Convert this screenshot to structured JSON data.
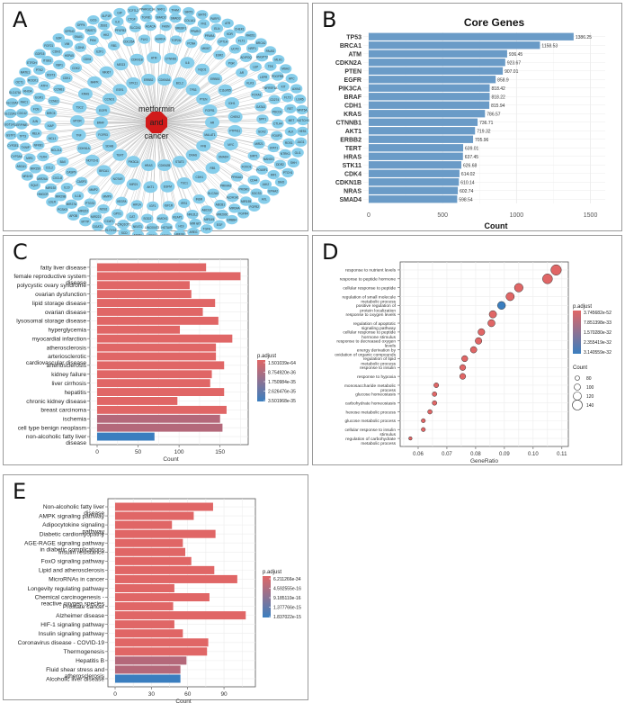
{
  "panels": {
    "A": {
      "letter": "A"
    },
    "B": {
      "letter": "B"
    },
    "C": {
      "letter": "C"
    },
    "D": {
      "letter": "D"
    },
    "E": {
      "letter": "E"
    }
  },
  "network": {
    "center_label_lines": [
      "metformin",
      "and",
      "cancer"
    ],
    "center_color": "#d11a1a",
    "node_color": "#87ceeb",
    "edge_color": "#b8b8b8",
    "inner_nodes": [
      "AR",
      "MALAT1",
      "FFB",
      "DNAS",
      "STAT3",
      "CDKN2B",
      "HRAS",
      "PIK3CA",
      "TERT",
      "SDHB",
      "FGFR3",
      "BRAF",
      "EGFR",
      "CCND1",
      "ESR1",
      "STK11",
      "ERBB2",
      "CDKN2A",
      "BCL2",
      "TP53",
      "PTEN",
      "FGFR1",
      "PTPN11",
      "MYC",
      "SMAD4",
      "RB1",
      "CDH1",
      "TSC1",
      "EGFM",
      "AKT1",
      "MIR21",
      "NOTAR",
      "BRCA1",
      "NOTCH1",
      "CDKN1A",
      "TNF",
      "MTOR",
      "TSC2",
      "KRAS",
      "MAPK",
      "MKI67",
      "MEG3",
      "CDKN1B",
      "ATM",
      "CTNNB1",
      "IL6",
      "NQO1",
      "ERBB3",
      "C11orf65",
      "IDH1",
      "CHEK2"
    ],
    "outer_nodes": [
      "MIR21",
      "SIRT1",
      "FOXO1",
      "PRKAA1",
      "PRKAA2",
      "SLC2A4",
      "INSR",
      "IRS1",
      "IGF1R",
      "IGF1",
      "HIF1A",
      "VEGFA",
      "MMP9",
      "MMP2",
      "CASP3",
      "CASP9",
      "BAX",
      "BCL2L1",
      "MCL1",
      "XIAP",
      "BIRC5",
      "CCNE1",
      "CCNB1",
      "CDK1",
      "CDK2",
      "CDK6",
      "E2F1",
      "RB1",
      "CDC25A",
      "PLK1",
      "AURKA",
      "TOP2A",
      "PCNA",
      "MKI67",
      "ESR2",
      "PGR",
      "AR",
      "KLK3",
      "FOXA1",
      "GATA3",
      "SPP1",
      "SOX2",
      "NANOG",
      "POU5F1",
      "CD44",
      "PROM1",
      "ALDH1A1",
      "ABCB1",
      "ABCG2",
      "NFE2L2",
      "KEAP1",
      "HMOX1",
      "SOD2",
      "CAT",
      "GPX1",
      "NOS2",
      "PTGS2",
      "IL1B",
      "IL10",
      "CXCL8",
      "CCL2",
      "TLR4",
      "NFKB1",
      "RELA",
      "JUN",
      "FOS",
      "EGR1",
      "ATF4",
      "DDIT3",
      "XBP1",
      "HSPA5",
      "LDHA",
      "PKM",
      "HK2",
      "PFKFB3",
      "SLC2A1",
      "ACACA",
      "FASN",
      "SREBF1",
      "PPARG",
      "PPARA",
      "CPT1A",
      "UCP2",
      "ADIPOQ",
      "LEP",
      "LEPR",
      "TNFRSF1A",
      "CD274",
      "PDCD1",
      "CTLA4",
      "FOXP3",
      "STAT1",
      "IRF1",
      "JAK2",
      "SOCS3",
      "MIR155",
      "MIR34A",
      "MIR200C",
      "MIR145",
      "MIR let7",
      "H19",
      "HOTAIR",
      "LINC00473",
      "NEAT1",
      "KCNQ1OT1",
      "CCAT1",
      "MIR221",
      "MIR222",
      "MIR27A",
      "MIR29B",
      "MIR192",
      "MIR26A",
      "MIR150",
      "MIR1",
      "TXNIP",
      "TP73",
      "SERPINE1",
      "CDC42",
      "RAC1",
      "RHOA",
      "ROCK1",
      "PTK2",
      "ITGB1",
      "CDH2",
      "VIM",
      "SNAI1",
      "TWIST1",
      "ZEB1",
      "ILK",
      "CTGF",
      "TGFB1",
      "SMAD2",
      "SMAD3",
      "COL1A1",
      "FN1",
      "ELN",
      "KDR",
      "FLT1",
      "NRP1",
      "ANGPT2",
      "TEK",
      "PDGFRB",
      "KIT",
      "FLT3",
      "RET",
      "MET",
      "ALK",
      "ROS1",
      "NTRK1",
      "DDR2",
      "EPHA2",
      "AXL",
      "FGFR2",
      "FGFR4",
      "ERBB4",
      "EGF",
      "TGFA",
      "AREG",
      "HBEGF",
      "NRG1",
      "CD36",
      "MSR1",
      "SCD",
      "ELOVL6",
      "DGAT1",
      "MTTP",
      "APOB",
      "PCSK9",
      "LDLR",
      "HMGCR",
      "SQLE",
      "NR1H3",
      "ABCA1",
      "CYP3A4",
      "CYP2E1",
      "GSTP1",
      "UGT1A1",
      "SLC22A1",
      "SLC22A2",
      "SLC47A1",
      "OCT1",
      "MATE1",
      "ETFDH",
      "GDF15",
      "FGF21",
      "IL6R",
      "GPR40",
      "DPP4",
      "GCG",
      "GLP1R",
      "GIP",
      "TCF7L2",
      "PPARGC1A",
      "NRF1",
      "TFAM",
      "SIRT3",
      "SIRT6",
      "PARP1",
      "ATR",
      "CHEK1",
      "RAD51",
      "BRCA2",
      "PALB2",
      "MLH1",
      "MSH2",
      "APC",
      "AXIN2",
      "LGR5",
      "WNT5A",
      "NOTCH3",
      "HES1",
      "JAG1",
      "GLI1",
      "SHH",
      "PTCH1",
      "SMO",
      "YAP1",
      "TAZ",
      "LATS1",
      "MST1",
      "NF2",
      "TSC22D3"
    ],
    "outer_ring_counts": [
      30,
      42,
      52,
      60
    ]
  },
  "chart_data": [
    {
      "id": "B",
      "type": "bar",
      "orientation": "horizontal",
      "title": "Core Genes",
      "xlabel": "Count",
      "ylabel": "",
      "categories": [
        "TP53",
        "BRCA1",
        "ATM",
        "CDKN2A",
        "PTEN",
        "EGFR",
        "PIK3CA",
        "BRAF",
        "CDH1",
        "KRAS",
        "CTNNB1",
        "AKT1",
        "ERBB2",
        "TERT",
        "HRAS",
        "STK11",
        "CDK4",
        "CDKN1B",
        "NRAS",
        "SMAD4"
      ],
      "values": [
        1386.25,
        1158.53,
        936.45,
        923.67,
        907.01,
        858.9,
        818.42,
        818.22,
        815.94,
        786.57,
        736.71,
        719.32,
        705.96,
        639.01,
        637.45,
        626.68,
        614.02,
        610.14,
        602.74,
        598.54
      ],
      "data_labels": [
        "1386.25",
        "1158.53",
        "936.45",
        "923.67",
        "907.01",
        "858.9",
        "818.42",
        "818.22",
        "815.94",
        "786.57",
        "736.71",
        "719.32",
        "705.96",
        "639.01",
        "637.45",
        "626.68",
        "614.02",
        "610.14",
        "602.74",
        "598.54"
      ],
      "xlim": [
        0,
        1600
      ],
      "xticks": [
        0,
        500,
        1000,
        1500
      ],
      "bar_color": "#6a9bc7",
      "grid": true
    },
    {
      "id": "C",
      "type": "bar",
      "orientation": "horizontal",
      "title": "",
      "xlabel": "Count",
      "ylabel": "",
      "categories": [
        "fatty liver disease",
        "female reproductive system disease",
        "polycystic ovary syndrome",
        "ovarian dysfunction",
        "lipid storage disease",
        "ovarian disease",
        "lysosomal storage disease",
        "hyperglycemia",
        "myocardial infarction",
        "atherosclerosis",
        "arteriosclerotic cardiovascular disease",
        "arteriosclerosis",
        "kidney failure",
        "liver cirrhosis",
        "hepatitis",
        "chronic kidney disease",
        "breast carcinoma",
        "ischemia",
        "cell type benign neoplasm",
        "non-alcoholic fatty liver disease"
      ],
      "category_lines": [
        [
          "fatty liver disease"
        ],
        [
          "female reproductive system",
          "disease"
        ],
        [
          "polycystic ovary syndrome"
        ],
        [
          "ovarian dysfunction"
        ],
        [
          "lipid storage disease"
        ],
        [
          "ovarian disease"
        ],
        [
          "lysosomal storage disease"
        ],
        [
          "hyperglycemia"
        ],
        [
          "myocardial infarction"
        ],
        [
          "atherosclerosis"
        ],
        [
          "arteriosclerotic",
          "cardiovascular disease"
        ],
        [
          "arteriosclerosis"
        ],
        [
          "kidney failure"
        ],
        [
          "liver cirrhosis"
        ],
        [
          "hepatitis"
        ],
        [
          "chronic kidney disease"
        ],
        [
          "breast carcinoma"
        ],
        [
          "ischemia"
        ],
        [
          "cell type benign neoplasm"
        ],
        [
          "non-alcoholic fatty liver",
          "disease"
        ]
      ],
      "values": [
        133,
        175,
        113,
        115,
        144,
        129,
        148,
        101,
        165,
        145,
        145,
        155,
        140,
        138,
        155,
        98,
        158,
        150,
        153,
        70
      ],
      "p_adjust": [
        1.5e-64,
        1.5e-64,
        1.5e-64,
        1.5e-64,
        1.5e-64,
        1.5e-64,
        1.5e-64,
        1.5e-64,
        1.5e-64,
        1.5e-64,
        1.5e-64,
        1.5e-64,
        1.5e-64,
        1.5e-64,
        1.5e-64,
        1.5e-64,
        1.5e-64,
        1.3e-35,
        1.3e-35,
        3.5e-35
      ],
      "colors": [
        "#e06666",
        "#e06666",
        "#e06666",
        "#e06666",
        "#e06666",
        "#e06666",
        "#e06666",
        "#e06666",
        "#e06666",
        "#e06666",
        "#e06666",
        "#e06666",
        "#e06666",
        "#e06666",
        "#e06666",
        "#e06666",
        "#e06666",
        "#b4687a",
        "#b4687a",
        "#3a7ebf"
      ],
      "xlim": [
        0,
        180
      ],
      "xticks": [
        0,
        50,
        100,
        150
      ],
      "legend": {
        "title": "p.adjust",
        "labels": [
          "1.501039e-64",
          "8.754920e-36",
          "1.750984e-35",
          "2.626476e-35",
          "3.501968e-35"
        ],
        "color_low": "#e06666",
        "color_high": "#3a7ebf",
        "placement": "right"
      },
      "grid": true
    },
    {
      "id": "D",
      "type": "scatter",
      "title": "",
      "xlabel": "GeneRatio",
      "ylabel": "",
      "categories": [
        "response to nutrient levels",
        "response to peptide hormone",
        "cellular response to peptide",
        "regulation of small molecule metabolic process",
        "positive regulation of protein localization",
        "response to oxygen levels",
        "regulation of apoptotic signaling pathway",
        "cellular response to peptide hormone stimulus",
        "response to decreased oxygen levels",
        "energy derivation by oxidation of organic compounds",
        "regulation of lipid metabolic process",
        "response to insulin",
        "response to hypoxia",
        "monosaccharide metabolic process",
        "glucose homeostasis",
        "carbohydrate homeostasis",
        "hexose metabolic process",
        "glucose metabolic process",
        "cellular response to insulin stimulus",
        "regulation of carbohydrate metabolic process"
      ],
      "category_lines": [
        [
          "response to nutrient levels"
        ],
        [
          "response to peptide hormone"
        ],
        [
          "cellular response to peptide"
        ],
        [
          "regulation of small molecule",
          "metabolic process"
        ],
        [
          "positive regulation of",
          "protein localization"
        ],
        [
          "response to oxygen levels"
        ],
        [
          "regulation of apoptotic",
          "signaling pathway"
        ],
        [
          "cellular response to peptide",
          "hormone stimulus"
        ],
        [
          "response to decreased oxygen",
          "levels"
        ],
        [
          "energy derivation by",
          "oxidation of organic compounds"
        ],
        [
          "regulation of lipid",
          "metabolic process"
        ],
        [
          "response to insulin"
        ],
        [
          "response to hypoxia"
        ],
        [
          "monosaccharide metabolic",
          "process"
        ],
        [
          "glucose homeostasis"
        ],
        [
          "carbohydrate homeostasis"
        ],
        [
          "hexose metabolic process"
        ],
        [
          "glucose metabolic process"
        ],
        [
          "cellular response to insulin",
          "stimulus"
        ],
        [
          "regulation of carbohydrate",
          "metabolic process"
        ]
      ],
      "x": [
        0.108,
        0.105,
        0.095,
        0.092,
        0.089,
        0.086,
        0.0855,
        0.082,
        0.081,
        0.0793,
        0.0762,
        0.0755,
        0.0755,
        0.0663,
        0.0657,
        0.0657,
        0.0641,
        0.0618,
        0.0618,
        0.0573
      ],
      "counts": [
        146,
        140,
        126,
        122,
        118,
        112,
        110,
        106,
        104,
        102,
        98,
        96,
        96,
        84,
        82,
        82,
        80,
        76,
        76,
        68
      ],
      "colors": [
        "#e06666",
        "#e06666",
        "#e06666",
        "#e06666",
        "#3a7ebf",
        "#e06666",
        "#e06666",
        "#e06666",
        "#e06666",
        "#e06666",
        "#e06666",
        "#e06666",
        "#e06666",
        "#e06666",
        "#e06666",
        "#e06666",
        "#e06666",
        "#e06666",
        "#e06666",
        "#e06666"
      ],
      "xlim": [
        0.055,
        0.111
      ],
      "xticks": [
        0.06,
        0.07,
        0.08,
        0.09,
        0.1,
        0.11
      ],
      "xtick_labels": [
        "0.06",
        "0.07",
        "0.08",
        "0.09",
        "0.10",
        "0.11"
      ],
      "legend": {
        "title": "p.adjust",
        "labels": [
          "3.745682e-52",
          "7.851398e-33",
          "1.570280e-32",
          "2.355419e-32",
          "3.140559e-32"
        ],
        "color_low": "#e06666",
        "color_high": "#3a7ebf",
        "size_title": "Count",
        "size_values": [
          80,
          100,
          120,
          140
        ],
        "size_labels": [
          "80",
          "100",
          "120",
          "140"
        ],
        "placement": "right"
      },
      "grid": true
    },
    {
      "id": "E",
      "type": "bar",
      "orientation": "horizontal",
      "title": "",
      "xlabel": "Count",
      "ylabel": "",
      "categories": [
        "Non-alcoholic fatty liver disease",
        "AMPK signaling pathway",
        "Adipocytokine signaling pathway",
        "Diabetic cardiomyopathy",
        "AGE-RAGE signaling pathway in diabetic complications",
        "Insulin resistance",
        "FoxO signaling pathway",
        "Lipid and atherosclerosis",
        "MicroRNAs in cancer",
        "Longevity regulating pathway",
        "Chemical carcinogenesis - reactive oxygen species",
        "Prostate cancer",
        "Alzheimer disease",
        "HIF-1 signaling pathway",
        "Insulin signaling pathway",
        "Coronavirus disease - COVID-19",
        "Thermogenesis",
        "Hepatitis B",
        "Fluid shear stress and atherosclerosis",
        "Alcoholic liver disease"
      ],
      "category_lines": [
        [
          "Non-alcoholic fatty liver",
          "disease"
        ],
        [
          "AMPK signaling pathway"
        ],
        [
          "Adipocytokine signaling",
          "pathway"
        ],
        [
          "Diabetic cardiomyopathy"
        ],
        [
          "AGE-RAGE signaling pathway",
          "in diabetic complications"
        ],
        [
          "Insulin resistance"
        ],
        [
          "FoxO signaling pathway"
        ],
        [
          "Lipid and atherosclerosis"
        ],
        [
          "MicroRNAs in cancer"
        ],
        [
          "Longevity regulating pathway"
        ],
        [
          "Chemical carcinogenesis -",
          "reactive oxygen species"
        ],
        [
          "Prostate cancer"
        ],
        [
          "Alzheimer disease"
        ],
        [
          "HIF-1 signaling pathway"
        ],
        [
          "Insulin signaling pathway"
        ],
        [
          "Coronavirus disease - COVID-19"
        ],
        [
          "Thermogenesis"
        ],
        [
          "Hepatitis B"
        ],
        [
          "Fluid shear stress and",
          "atherosclerosis"
        ],
        [
          "Alcoholic liver disease"
        ]
      ],
      "values": [
        81,
        65,
        47,
        83,
        56,
        58,
        63,
        82,
        101,
        49,
        78,
        48,
        108,
        49,
        56,
        77,
        76,
        59,
        54,
        54
      ],
      "colors": [
        "#e06666",
        "#e06666",
        "#e06666",
        "#e06666",
        "#e06666",
        "#e06666",
        "#e06666",
        "#e06666",
        "#e06666",
        "#e06666",
        "#e06666",
        "#e06666",
        "#e06666",
        "#e06666",
        "#e06666",
        "#e06666",
        "#e06666",
        "#b4687a",
        "#b4687a",
        "#3a7ebf"
      ],
      "xlim": [
        0,
        113
      ],
      "xticks": [
        0,
        30,
        60,
        90
      ],
      "legend": {
        "title": "p.adjust",
        "labels": [
          "6.211266e-34",
          "4.592555e-16",
          "9.185110e-16",
          "1.377766e-15",
          "1.837022e-15"
        ],
        "color_low": "#e06666",
        "color_high": "#3a7ebf",
        "placement": "right"
      },
      "grid": true
    }
  ]
}
